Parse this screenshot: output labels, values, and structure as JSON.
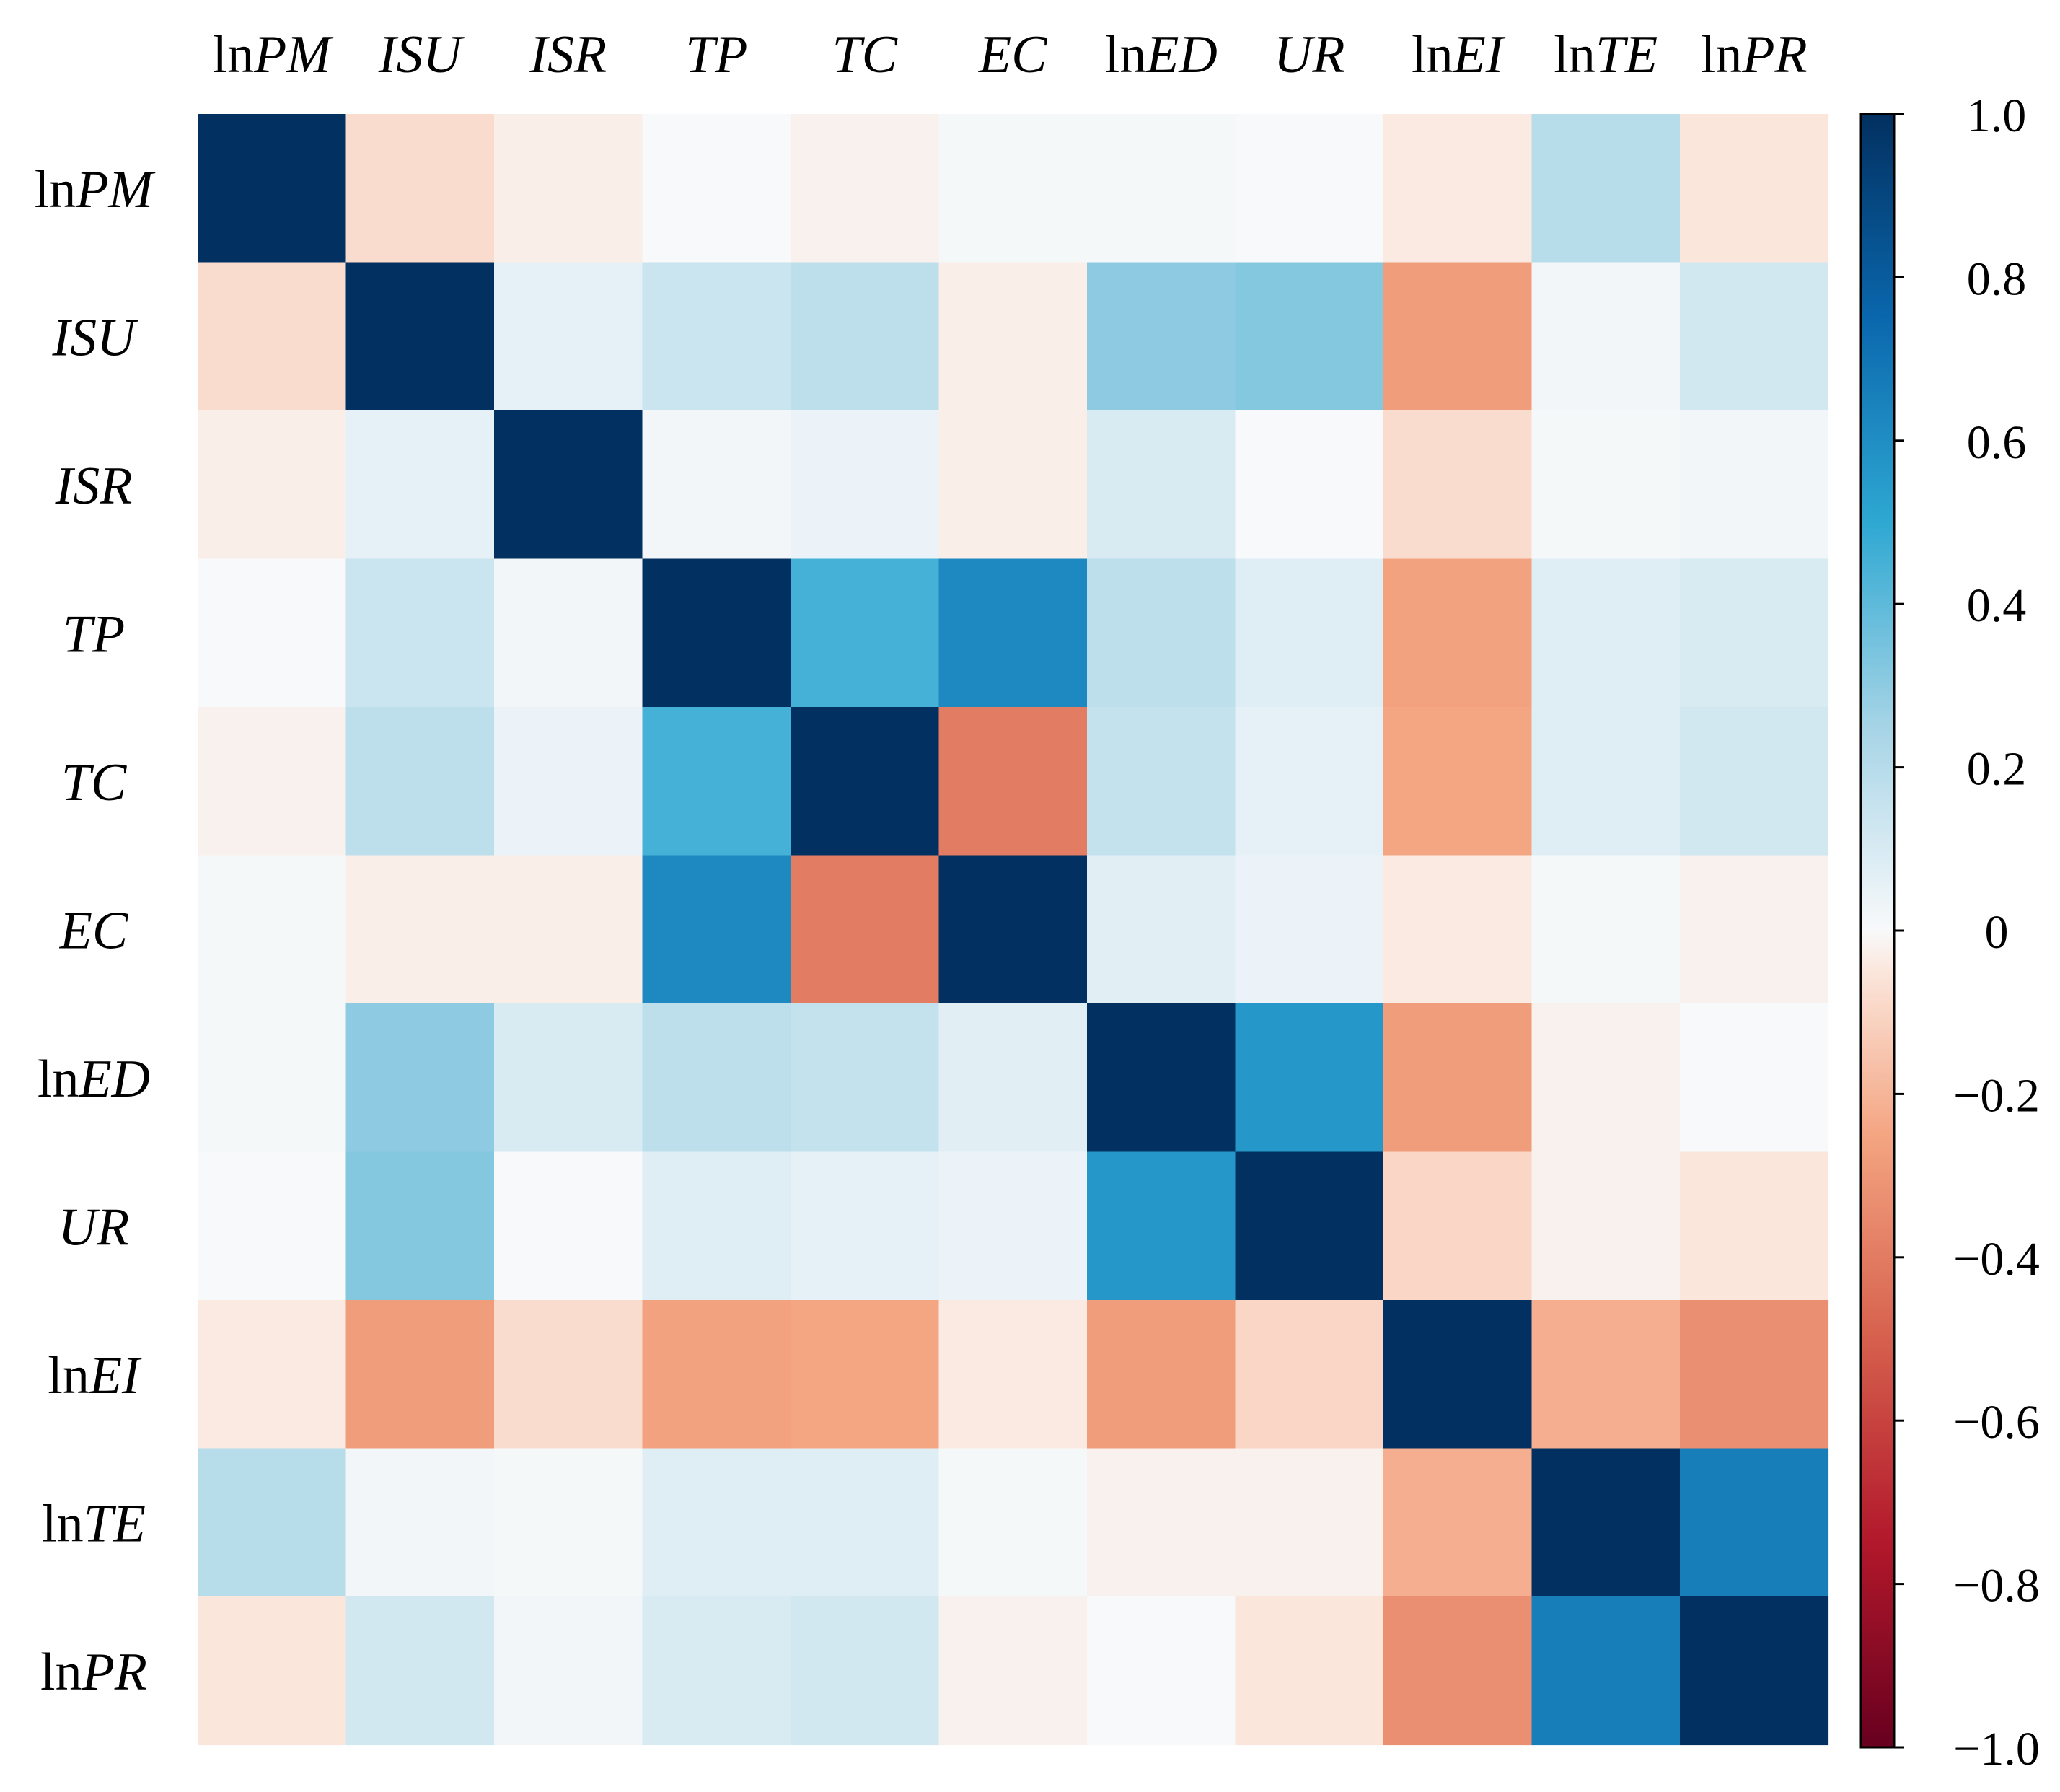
{
  "chart_data": {
    "type": "heatmap",
    "title": "",
    "variables": [
      {
        "prefix": "ln",
        "name": "PM"
      },
      {
        "prefix": "",
        "name": "ISU"
      },
      {
        "prefix": "",
        "name": "ISR"
      },
      {
        "prefix": "",
        "name": "TP"
      },
      {
        "prefix": "",
        "name": "TC"
      },
      {
        "prefix": "",
        "name": "EC"
      },
      {
        "prefix": "ln",
        "name": "ED"
      },
      {
        "prefix": "",
        "name": "UR"
      },
      {
        "prefix": "ln",
        "name": "EI"
      },
      {
        "prefix": "ln",
        "name": "TE"
      },
      {
        "prefix": "ln",
        "name": "PR"
      }
    ],
    "matrix": [
      [
        1.0,
        -0.08,
        -0.03,
        0.0,
        -0.02,
        0.01,
        0.01,
        0.0,
        -0.04,
        0.2,
        -0.05
      ],
      [
        -0.08,
        1.0,
        0.06,
        0.14,
        0.18,
        -0.03,
        0.3,
        0.32,
        -0.28,
        0.02,
        0.12
      ],
      [
        -0.03,
        0.06,
        1.0,
        0.02,
        0.04,
        -0.03,
        0.1,
        0.0,
        -0.08,
        0.01,
        0.02
      ],
      [
        0.0,
        0.14,
        0.02,
        1.0,
        0.45,
        0.62,
        0.18,
        0.08,
        -0.26,
        0.08,
        0.1
      ],
      [
        -0.02,
        0.18,
        0.04,
        0.45,
        1.0,
        -0.4,
        0.16,
        0.06,
        -0.25,
        0.08,
        0.12
      ],
      [
        0.01,
        -0.03,
        -0.03,
        0.62,
        -0.4,
        1.0,
        0.07,
        0.04,
        -0.04,
        0.01,
        -0.02
      ],
      [
        0.01,
        0.3,
        0.1,
        0.18,
        0.16,
        0.07,
        1.0,
        0.56,
        -0.28,
        -0.02,
        0.0
      ],
      [
        0.0,
        0.32,
        0.0,
        0.08,
        0.06,
        0.04,
        0.56,
        1.0,
        -0.1,
        -0.02,
        -0.05
      ],
      [
        -0.04,
        -0.28,
        -0.08,
        -0.26,
        -0.25,
        -0.04,
        -0.28,
        -0.1,
        1.0,
        -0.22,
        -0.33
      ],
      [
        0.2,
        0.02,
        0.01,
        0.08,
        0.08,
        0.01,
        -0.02,
        -0.02,
        -0.22,
        1.0,
        0.66
      ],
      [
        -0.05,
        0.12,
        0.02,
        0.1,
        0.12,
        -0.02,
        0.0,
        -0.05,
        -0.33,
        0.66,
        1.0
      ]
    ],
    "colorbar": {
      "range": [
        -1.0,
        1.0
      ],
      "ticks": [
        1.0,
        0.8,
        0.6,
        0.4,
        0.2,
        0,
        -0.2,
        -0.4,
        -0.6,
        -0.8,
        -1.0
      ],
      "tick_labels": [
        "1.0",
        "0.8",
        "0.6",
        "0.4",
        "0.2",
        "0",
        "−0.2",
        "−0.4",
        "−0.6",
        "−0.8",
        "−1.0"
      ],
      "colormap": "RdBu"
    },
    "colormap_stops": [
      {
        "v": -1.0,
        "color": "#67001f"
      },
      {
        "v": -0.75,
        "color": "#b2182b"
      },
      {
        "v": -0.5,
        "color": "#d6604d"
      },
      {
        "v": -0.25,
        "color": "#f4a582"
      },
      {
        "v": -0.05,
        "color": "#fbe6dc"
      },
      {
        "v": 0.0,
        "color": "#f8f9fa"
      },
      {
        "v": 0.05,
        "color": "#e8f2f7"
      },
      {
        "v": 0.25,
        "color": "#a6d4e6"
      },
      {
        "v": 0.5,
        "color": "#2ea8d2"
      },
      {
        "v": 0.75,
        "color": "#0a67ad"
      },
      {
        "v": 1.0,
        "color": "#023060"
      }
    ]
  }
}
